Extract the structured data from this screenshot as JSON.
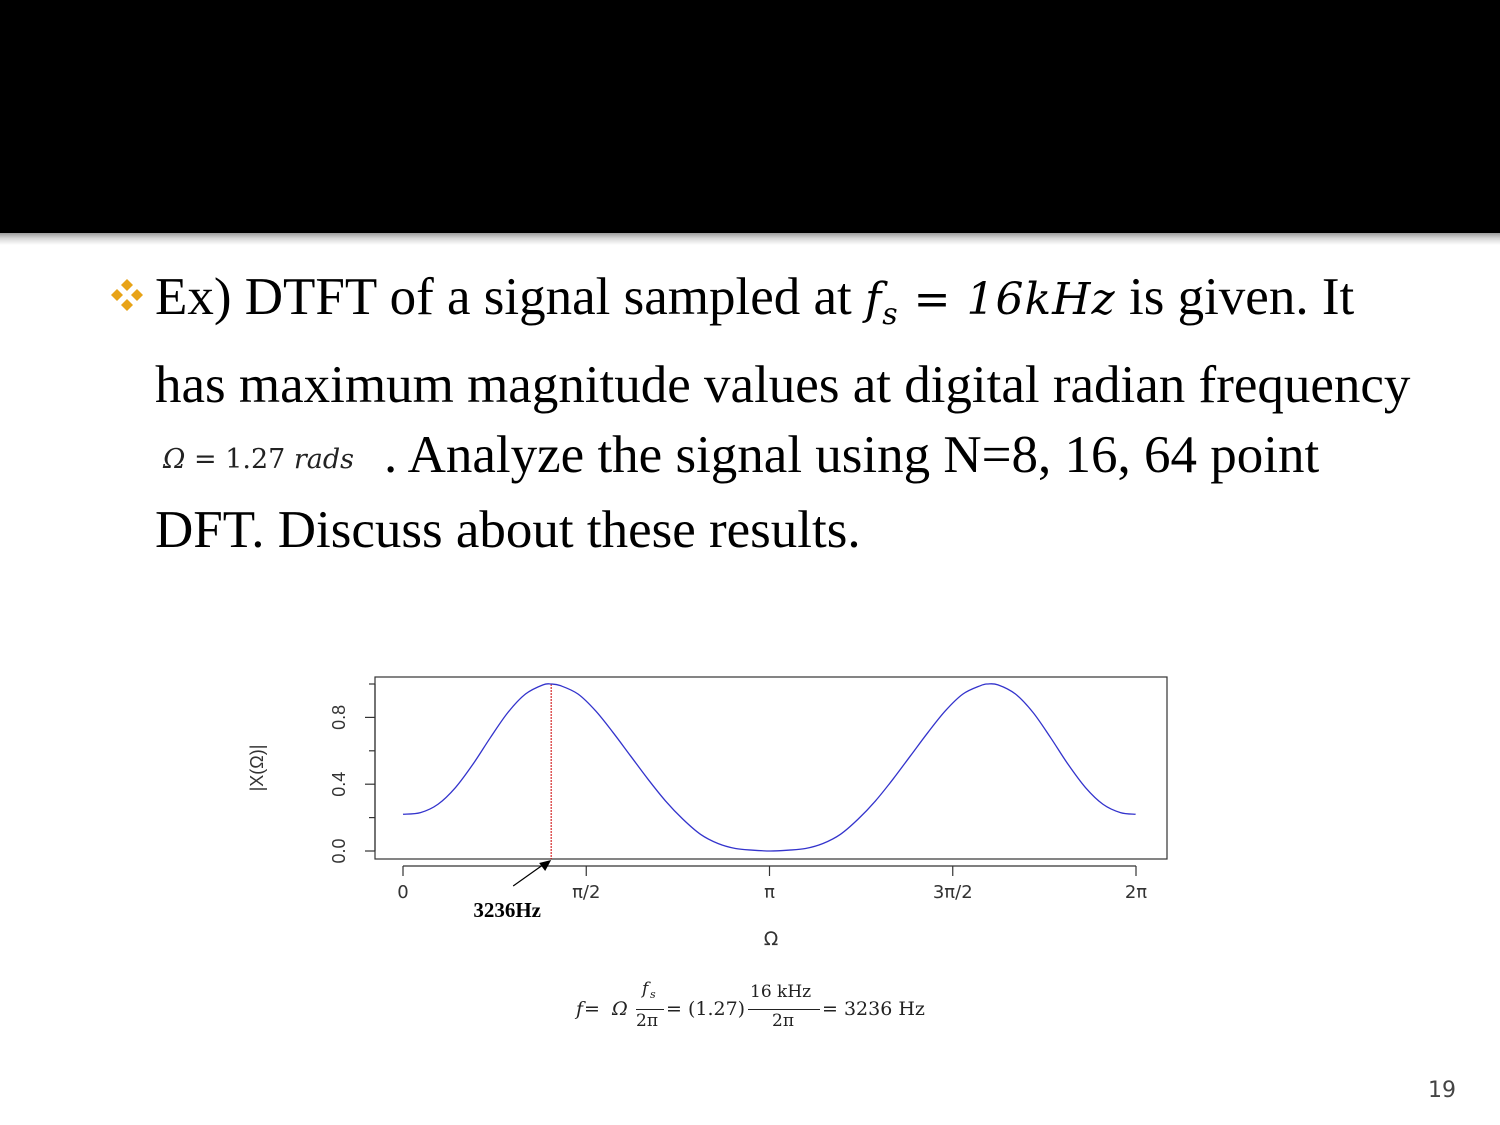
{
  "slide": {
    "bullet_icon": "four-diamond-bullet-icon",
    "accent_color": "#e8a317",
    "text_part1": "Ex) DTFT of a signal sampled at ",
    "fs_symbol": "f",
    "fs_subscript": "s",
    "fs_value": " = 16kHz",
    "text_part2": " is given. It has maximum magnitude values at digital radian frequency",
    "omega_symbol": "Ω",
    "omega_eq": " = ",
    "omega_value": "1.27",
    "omega_unit": " rads",
    "text_part3": ". Analyze the signal using N=8, 16, 64 point DFT. Discuss about these results.",
    "slide_number": "19"
  },
  "chart_data": {
    "type": "line",
    "title": "",
    "xlabel": "Ω",
    "ylabel": "|X(Ω)|",
    "xlim": [
      0,
      6.2832
    ],
    "ylim": [
      0,
      1.0
    ],
    "x_ticks": [
      {
        "value": 0,
        "label": "0"
      },
      {
        "value": 1.5708,
        "label": "π/2"
      },
      {
        "value": 3.1416,
        "label": "π"
      },
      {
        "value": 4.7124,
        "label": "3π/2"
      },
      {
        "value": 6.2832,
        "label": "2π"
      }
    ],
    "y_ticks": [
      {
        "value": 0.0,
        "label": "0.0"
      },
      {
        "value": 0.4,
        "label": "0.4"
      },
      {
        "value": 0.8,
        "label": "0.8"
      }
    ],
    "y_minor_ticks": [
      0.2,
      0.6,
      1.0
    ],
    "series": [
      {
        "color": "#3333cc",
        "x": [
          0,
          0.15,
          0.3,
          0.45,
          0.6,
          0.75,
          0.9,
          1.05,
          1.2,
          1.27,
          1.35,
          1.5,
          1.65,
          1.8,
          1.95,
          2.1,
          2.25,
          2.4,
          2.55,
          2.7,
          2.85,
          3.0,
          3.15,
          3.3,
          3.45,
          3.6,
          3.75,
          3.9,
          4.05,
          4.2,
          4.35,
          4.5,
          4.65,
          4.8,
          4.95,
          5.01,
          5.1,
          5.25,
          5.4,
          5.55,
          5.7,
          5.85,
          6.0,
          6.15,
          6.28
        ],
        "y": [
          0.22,
          0.23,
          0.28,
          0.38,
          0.52,
          0.68,
          0.83,
          0.94,
          0.995,
          1.0,
          0.99,
          0.94,
          0.84,
          0.71,
          0.57,
          0.43,
          0.3,
          0.19,
          0.1,
          0.045,
          0.015,
          0.005,
          0.0,
          0.005,
          0.015,
          0.045,
          0.1,
          0.19,
          0.3,
          0.43,
          0.57,
          0.71,
          0.84,
          0.94,
          0.99,
          1.0,
          0.995,
          0.94,
          0.83,
          0.68,
          0.52,
          0.38,
          0.28,
          0.23,
          0.22
        ]
      }
    ],
    "marker_line": {
      "x": 1.27,
      "color": "#cc0000"
    },
    "annotation": {
      "text": "3236Hz",
      "x": 1.27
    }
  },
  "formula": {
    "f": "f",
    "eq1": " = ",
    "omega": "Ω",
    "fs_num": "f",
    "fs_sub": "s",
    "two_pi_1": "2π",
    "eq2": "= (1.27)",
    "khz_num": "16 kHz",
    "two_pi_2": "2π",
    "result": "= 3236 Hz"
  }
}
